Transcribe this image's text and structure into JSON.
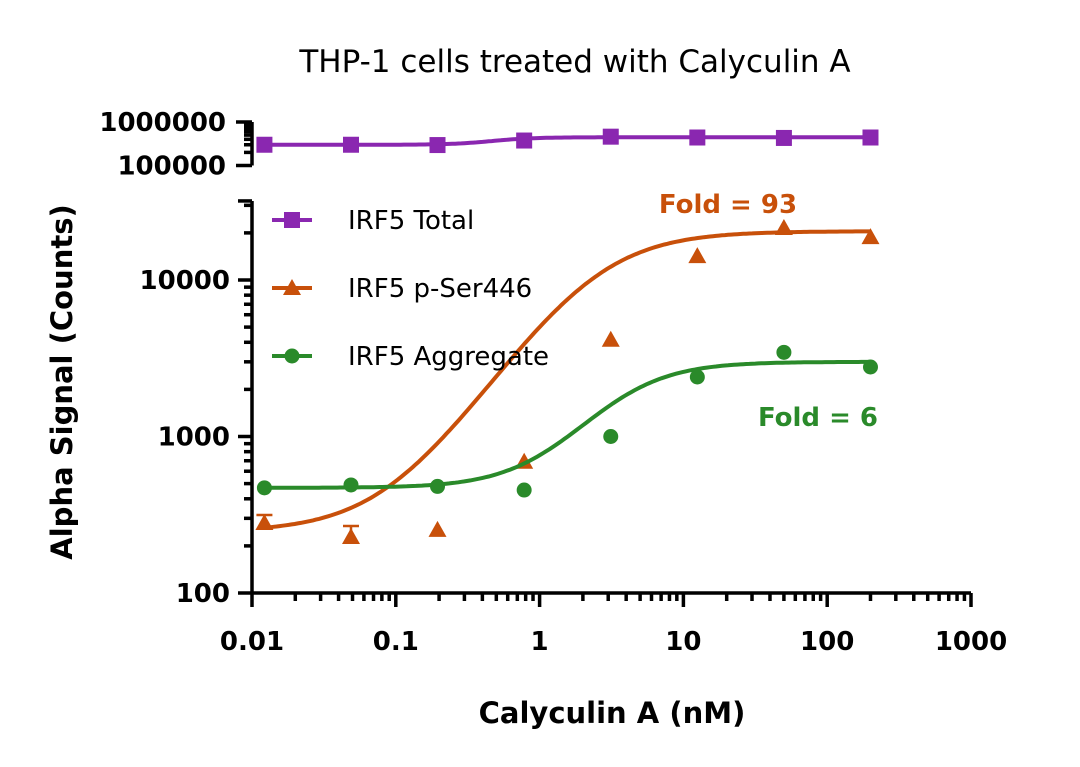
{
  "chart_data": {
    "type": "scatter",
    "title": "THP-1 cells treated with Calyculin A",
    "xlabel": "Calyculin A (nM)",
    "ylabel": "Alpha Signal (Counts)",
    "xscale": "log",
    "yscale": "log",
    "xlim": [
      0.01,
      1000
    ],
    "ylim": [
      100,
      32000
    ],
    "ylim_upper_panel": [
      100000,
      1000000
    ],
    "x_ticks": [
      "0.01",
      "0.1",
      "1",
      "10",
      "100",
      "1000"
    ],
    "y_ticks": [
      "100",
      "1000",
      "10000"
    ],
    "y_ticks_upper_panel": [
      "100000",
      "1000000"
    ],
    "legend_position": "top-left",
    "x": [
      0.0122,
      0.0488,
      0.195,
      0.781,
      3.125,
      12.5,
      50,
      200
    ],
    "series": [
      {
        "name": "IRF5 Total",
        "marker": "square",
        "color": "#8a27b0",
        "panel": "upper",
        "values": [
          300000,
          300000,
          295000,
          375000,
          460000,
          440000,
          430000,
          440000
        ],
        "fit": {
          "bottom": 300000,
          "top": 445000,
          "ec50": 0.5,
          "hill": 3
        }
      },
      {
        "name": "IRF5 p-Ser446",
        "marker": "triangle",
        "color": "#c8500a",
        "panel": "lower",
        "values": [
          280,
          228,
          253,
          690,
          4150,
          14200,
          21500,
          18800
        ],
        "error_upper": [
          315,
          268,
          null,
          null,
          null,
          null,
          null,
          null
        ],
        "fit": {
          "bottom": 245,
          "top": 20500,
          "ec50": 2.4,
          "hill": 1.35
        }
      },
      {
        "name": "IRF5 Aggregate",
        "marker": "circle",
        "color": "#2a8a2a",
        "panel": "lower",
        "values": [
          470,
          490,
          480,
          455,
          1000,
          2400,
          3450,
          2780
        ],
        "fit": {
          "bottom": 470,
          "top": 3000,
          "ec50": 3.6,
          "hill": 1.6
        }
      }
    ],
    "annotations": [
      {
        "text": "Fold = 93",
        "color": "#c8500a"
      },
      {
        "text": "Fold = 6",
        "color": "#2a8a2a"
      }
    ]
  }
}
